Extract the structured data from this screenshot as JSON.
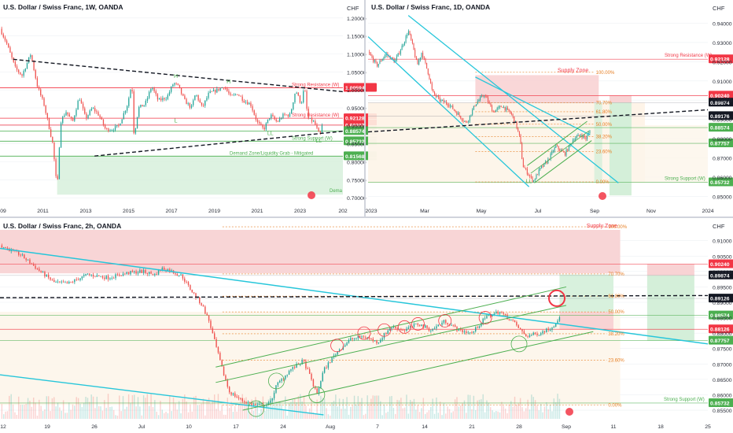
{
  "colors": {
    "up": "#26a69a",
    "down": "#ef5350",
    "teal": "#26c6da",
    "green": "#4caf50",
    "red": "#f23645",
    "redZone": "#f8d3d4",
    "greenZone": "#d4efd9",
    "fib": "#e67e22",
    "grid": "#eef0f3",
    "text": "#131722",
    "axisText": "#2a2e39",
    "divider": "#d1d4dc"
  },
  "chart_data": [
    {
      "id": "weekly",
      "type": "candlestick",
      "title": "U.S. Dollar / Swiss Franc, 1W, OANDA",
      "currency": "CHF",
      "x_ticks": [
        "09",
        "2011",
        "2013",
        "2015",
        "2017",
        "2019",
        "2021",
        "2023",
        "202"
      ],
      "y_ticks": [
        "1.20000",
        "1.15000",
        "1.10000",
        "1.05000",
        "1.00000",
        "0.95000",
        "0.90000",
        "0.85000",
        "0.80000",
        "0.75000",
        "0.70000"
      ],
      "ylim": [
        0.685,
        1.215
      ],
      "xlim": [
        2009.0,
        2024.6
      ],
      "path": [
        [
          2009.0,
          1.17
        ],
        [
          2009.3,
          1.13
        ],
        [
          2009.7,
          1.06
        ],
        [
          2010.0,
          1.04
        ],
        [
          2010.4,
          1.1
        ],
        [
          2010.7,
          1.01
        ],
        [
          2011.0,
          0.96
        ],
        [
          2011.4,
          0.85
        ],
        [
          2011.6,
          0.72
        ],
        [
          2011.75,
          0.91
        ],
        [
          2012.0,
          0.94
        ],
        [
          2012.3,
          0.91
        ],
        [
          2012.6,
          0.98
        ],
        [
          2012.9,
          0.92
        ],
        [
          2013.2,
          0.95
        ],
        [
          2013.5,
          0.93
        ],
        [
          2013.8,
          0.89
        ],
        [
          2014.1,
          0.89
        ],
        [
          2014.4,
          0.9
        ],
        [
          2014.8,
          0.96
        ],
        [
          2015.0,
          1.02
        ],
        [
          2015.1,
          0.87
        ],
        [
          2015.3,
          0.95
        ],
        [
          2015.6,
          0.96
        ],
        [
          2015.9,
          1.01
        ],
        [
          2016.2,
          0.97
        ],
        [
          2016.6,
          0.98
        ],
        [
          2016.9,
          1.02
        ],
        [
          2017.1,
          1.01
        ],
        [
          2017.4,
          0.97
        ],
        [
          2017.7,
          0.95
        ],
        [
          2017.9,
          0.99
        ],
        [
          2018.2,
          0.95
        ],
        [
          2018.5,
          0.99
        ],
        [
          2018.9,
          1.0
        ],
        [
          2019.2,
          1.01
        ],
        [
          2019.5,
          0.98
        ],
        [
          2019.8,
          0.99
        ],
        [
          2020.1,
          0.97
        ],
        [
          2020.4,
          0.96
        ],
        [
          2020.7,
          0.91
        ],
        [
          2021.0,
          0.89
        ],
        [
          2021.3,
          0.93
        ],
        [
          2021.6,
          0.91
        ],
        [
          2021.9,
          0.93
        ],
        [
          2022.2,
          0.93
        ],
        [
          2022.45,
          1.0
        ],
        [
          2022.7,
          0.96
        ],
        [
          2022.85,
          1.01
        ],
        [
          2023.0,
          0.92
        ],
        [
          2023.3,
          0.91
        ],
        [
          2023.55,
          0.87
        ],
        [
          2023.65,
          0.9
        ]
      ],
      "last_price": 0.9008,
      "levels": [
        {
          "price": 1.00594,
          "label": "Strong Resistance (W)",
          "tag": "1.00594",
          "color": "red"
        },
        {
          "price": 0.92128,
          "label": "Strong Resistance (W)",
          "tag": "0.92128",
          "color": "red"
        },
        {
          "price": 0.90207,
          "label": "",
          "tag": "0.90207",
          "color": "red"
        },
        {
          "price": 0.88574,
          "label": "",
          "tag": "0.88574",
          "color": "green"
        },
        {
          "price": 0.85732,
          "label": "Strong Support (W)",
          "tag": "0.85732",
          "color": "green"
        },
        {
          "price": 0.81568,
          "label": "Demand Zone/Liquidity Grab - Mitigated",
          "tag": "0.81568",
          "color": "green"
        }
      ],
      "demand_zone": {
        "top": 0.81568,
        "bottom": 0.7085,
        "from": 2011.6,
        "label_end": "Dema"
      },
      "trendlines": [
        {
          "style": "dashed",
          "from": [
            2009.6,
            1.085
          ],
          "to": [
            2024.6,
            0.995
          ]
        },
        {
          "style": "dashed",
          "from": [
            2013.3,
            0.816
          ],
          "to": [
            2024.6,
            0.885
          ]
        }
      ],
      "structure_labels": [
        {
          "text": "H",
          "x": 2017.0,
          "y": 1.033
        },
        {
          "text": "H",
          "x": 2019.4,
          "y": 1.018
        },
        {
          "text": "L",
          "x": 2017.0,
          "y": 0.91
        },
        {
          "text": "LL",
          "x": 2021.3,
          "y": 0.874
        },
        {
          "text": "LL",
          "x": 2023.5,
          "y": 0.854
        }
      ]
    },
    {
      "id": "daily",
      "type": "candlestick",
      "title": "U.S. Dollar / Swiss Franc, 1D, OANDA",
      "currency": "CHF",
      "x_ticks": [
        "2023",
        "Mar",
        "May",
        "Jul",
        "Sep",
        "Nov",
        "2024"
      ],
      "y_ticks": [
        "0.94000",
        "0.93000",
        "0.92000",
        "0.91000",
        "0.90000",
        "0.89000",
        "0.88000",
        "0.87000",
        "0.86000",
        "0.85000"
      ],
      "ylim": [
        0.8465,
        0.9455
      ],
      "xlim": [
        0,
        380
      ],
      "path": [
        [
          0,
          0.925
        ],
        [
          10,
          0.918
        ],
        [
          20,
          0.924
        ],
        [
          30,
          0.92
        ],
        [
          40,
          0.93
        ],
        [
          45,
          0.936
        ],
        [
          50,
          0.928
        ],
        [
          55,
          0.918
        ],
        [
          60,
          0.925
        ],
        [
          68,
          0.913
        ],
        [
          72,
          0.904
        ],
        [
          80,
          0.9
        ],
        [
          90,
          0.898
        ],
        [
          100,
          0.893
        ],
        [
          110,
          0.888
        ],
        [
          120,
          0.898
        ],
        [
          130,
          0.903
        ],
        [
          140,
          0.894
        ],
        [
          150,
          0.897
        ],
        [
          160,
          0.893
        ],
        [
          165,
          0.888
        ],
        [
          170,
          0.88
        ],
        [
          173,
          0.866
        ],
        [
          180,
          0.861
        ],
        [
          185,
          0.858
        ],
        [
          192,
          0.864
        ],
        [
          200,
          0.868
        ],
        [
          205,
          0.872
        ],
        [
          210,
          0.876
        ],
        [
          220,
          0.872
        ],
        [
          230,
          0.88
        ],
        [
          238,
          0.882
        ],
        [
          244,
          0.88
        ],
        [
          248,
          0.884
        ]
      ],
      "last_price": 0.8853,
      "levels": [
        {
          "price": 0.92128,
          "label": "Strong Resistance (W)",
          "tag": "0.92128",
          "color": "red"
        },
        {
          "price": 0.9024,
          "label": "",
          "tag": "0.90240",
          "color": "red"
        },
        {
          "price": 0.89874,
          "label": "",
          "tag": "0.89874",
          "color": "gray"
        },
        {
          "price": 0.89176,
          "label": "",
          "tag": "0.89176",
          "color": "gray"
        },
        {
          "price": 0.88574,
          "label": "",
          "tag": "0.88574",
          "color": "green"
        },
        {
          "price": 0.87757,
          "label": "",
          "tag": "0.87757",
          "color": "green"
        },
        {
          "price": 0.85732,
          "label": "Strong Support (W)",
          "tag": "0.85732",
          "color": "green"
        }
      ],
      "supply_zone": {
        "label": "Supply Zone",
        "top": 0.913,
        "bottom": 0.8985
      },
      "fib": [
        {
          "level": "100.00%",
          "price": 0.9145
        },
        {
          "level": "70.70%",
          "price": 0.8987
        },
        {
          "level": "61.80%",
          "price": 0.894
        },
        {
          "level": "50.00%",
          "price": 0.8875
        },
        {
          "level": "38.20%",
          "price": 0.881
        },
        {
          "level": "23.60%",
          "price": 0.8732
        },
        {
          "level": "0.00%",
          "price": 0.8575
        }
      ],
      "structure_labels": [
        {
          "text": "LL",
          "x": 180,
          "y": 0.857
        }
      ]
    },
    {
      "id": "twohour",
      "type": "candlestick",
      "title": "U.S. Dollar / Swiss Franc, 2h, OANDA",
      "currency": "CHF",
      "x_ticks": [
        "12",
        "19",
        "26",
        "Jul",
        "10",
        "17",
        "24",
        "Aug",
        "7",
        "14",
        "21",
        "28",
        "Sep",
        "11",
        "18",
        "25"
      ],
      "y_ticks": [
        "0.91000",
        "0.90500",
        "0.90000",
        "0.89500",
        "0.89000",
        "0.88500",
        "0.88000",
        "0.87500",
        "0.87000",
        "0.86500",
        "0.86000",
        "0.85500"
      ],
      "ylim": [
        0.8522,
        0.9135
      ],
      "xlim": [
        0,
        105
      ],
      "path": [
        [
          0,
          0.9085
        ],
        [
          3,
          0.9055
        ],
        [
          6,
          0.9
        ],
        [
          8,
          0.8965
        ],
        [
          10,
          0.896
        ],
        [
          13,
          0.899
        ],
        [
          16,
          0.898
        ],
        [
          19,
          0.8995
        ],
        [
          21,
          0.9
        ],
        [
          23,
          0.899
        ],
        [
          24,
          0.901
        ],
        [
          25,
          0.9005
        ],
        [
          27,
          0.8985
        ],
        [
          28,
          0.895
        ],
        [
          30,
          0.889
        ],
        [
          31,
          0.884
        ],
        [
          32,
          0.876
        ],
        [
          33,
          0.868
        ],
        [
          34,
          0.861
        ],
        [
          36,
          0.858
        ],
        [
          38,
          0.8565
        ],
        [
          40,
          0.857
        ],
        [
          41,
          0.863
        ],
        [
          43,
          0.868
        ],
        [
          45,
          0.871
        ],
        [
          46,
          0.866
        ],
        [
          47,
          0.86
        ],
        [
          48,
          0.868
        ],
        [
          50,
          0.874
        ],
        [
          52,
          0.878
        ],
        [
          54,
          0.879
        ],
        [
          56,
          0.877
        ],
        [
          58,
          0.882
        ],
        [
          60,
          0.881
        ],
        [
          62,
          0.883
        ],
        [
          64,
          0.881
        ],
        [
          66,
          0.884
        ],
        [
          68,
          0.881
        ],
        [
          70,
          0.88
        ],
        [
          72,
          0.885
        ],
        [
          74,
          0.887
        ],
        [
          76,
          0.884
        ],
        [
          78,
          0.879
        ],
        [
          80,
          0.88
        ],
        [
          82,
          0.882
        ],
        [
          83,
          0.8855
        ]
      ],
      "last_price": 0.8853,
      "levels": [
        {
          "price": 0.9024,
          "label": "",
          "tag": "0.90240",
          "color": "red"
        },
        {
          "price": 0.89874,
          "label": "",
          "tag": "0.89874",
          "color": "gray"
        },
        {
          "price": 0.89126,
          "label": "",
          "tag": "0.89126",
          "color": "gray"
        },
        {
          "price": 0.88574,
          "label": "",
          "tag": "0.88574",
          "color": "green"
        },
        {
          "price": 0.88126,
          "label": "",
          "tag": "0.88126",
          "color": "red"
        },
        {
          "price": 0.87757,
          "label": "",
          "tag": "0.87757",
          "color": "green"
        },
        {
          "price": 0.85732,
          "label": "Strong Support (W)",
          "tag": "0.85732",
          "color": "green"
        }
      ],
      "supply_zone": {
        "label": "Supply Zone",
        "top": 0.9135,
        "bottom": 0.8994
      },
      "fib": [
        {
          "level": "100.00%",
          "price": 0.9145
        },
        {
          "level": "70.70%",
          "price": 0.8992
        },
        {
          "level": "61.80%",
          "price": 0.892
        },
        {
          "level": "50.00%",
          "price": 0.8869
        },
        {
          "level": "38.20%",
          "price": 0.8798
        },
        {
          "level": "23.60%",
          "price": 0.8712
        },
        {
          "level": "0.00%",
          "price": 0.8567
        }
      ]
    }
  ]
}
